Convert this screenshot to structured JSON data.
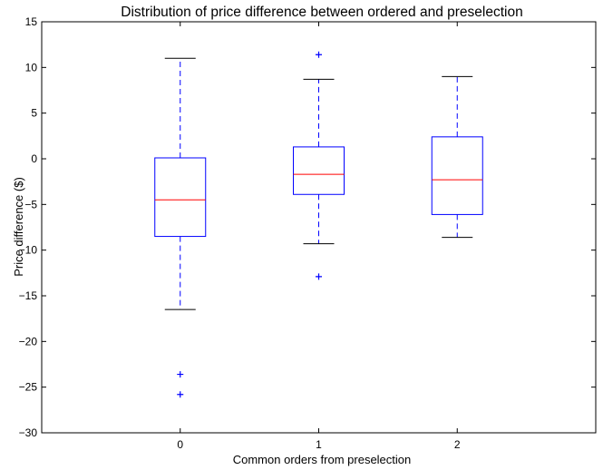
{
  "chart_data": {
    "type": "box",
    "title": "Distribution of price difference between ordered and preselection",
    "xlabel": "Common orders from preselection",
    "ylabel": "Price difference ($)",
    "categories": [
      "0",
      "1",
      "2"
    ],
    "ylim": [
      -30,
      15
    ],
    "yticks": [
      15,
      10,
      5,
      0,
      -5,
      -10,
      -15,
      -20,
      -25,
      -30
    ],
    "ytick_labels": [
      "15",
      "10",
      "5",
      "0",
      "−5",
      "−10",
      "−15",
      "−20",
      "−25",
      "−30"
    ],
    "grid": false,
    "boxes": [
      {
        "category": "0",
        "whisker_low": -16.5,
        "q1": -8.5,
        "median": -4.5,
        "q3": 0.1,
        "whisker_high": 11.0,
        "outliers": [
          -23.6,
          -25.8
        ]
      },
      {
        "category": "1",
        "whisker_low": -9.3,
        "q1": -3.9,
        "median": -1.7,
        "q3": 1.3,
        "whisker_high": 8.7,
        "outliers": [
          11.4,
          -12.9
        ]
      },
      {
        "category": "2",
        "whisker_low": -8.6,
        "q1": -6.1,
        "median": -2.3,
        "q3": 2.4,
        "whisker_high": 9.0,
        "outliers": []
      }
    ],
    "colors": {
      "box": "#0000ff",
      "median": "#ff0000",
      "whisker_cap": "#000000",
      "outlier": "#0000ff"
    }
  }
}
